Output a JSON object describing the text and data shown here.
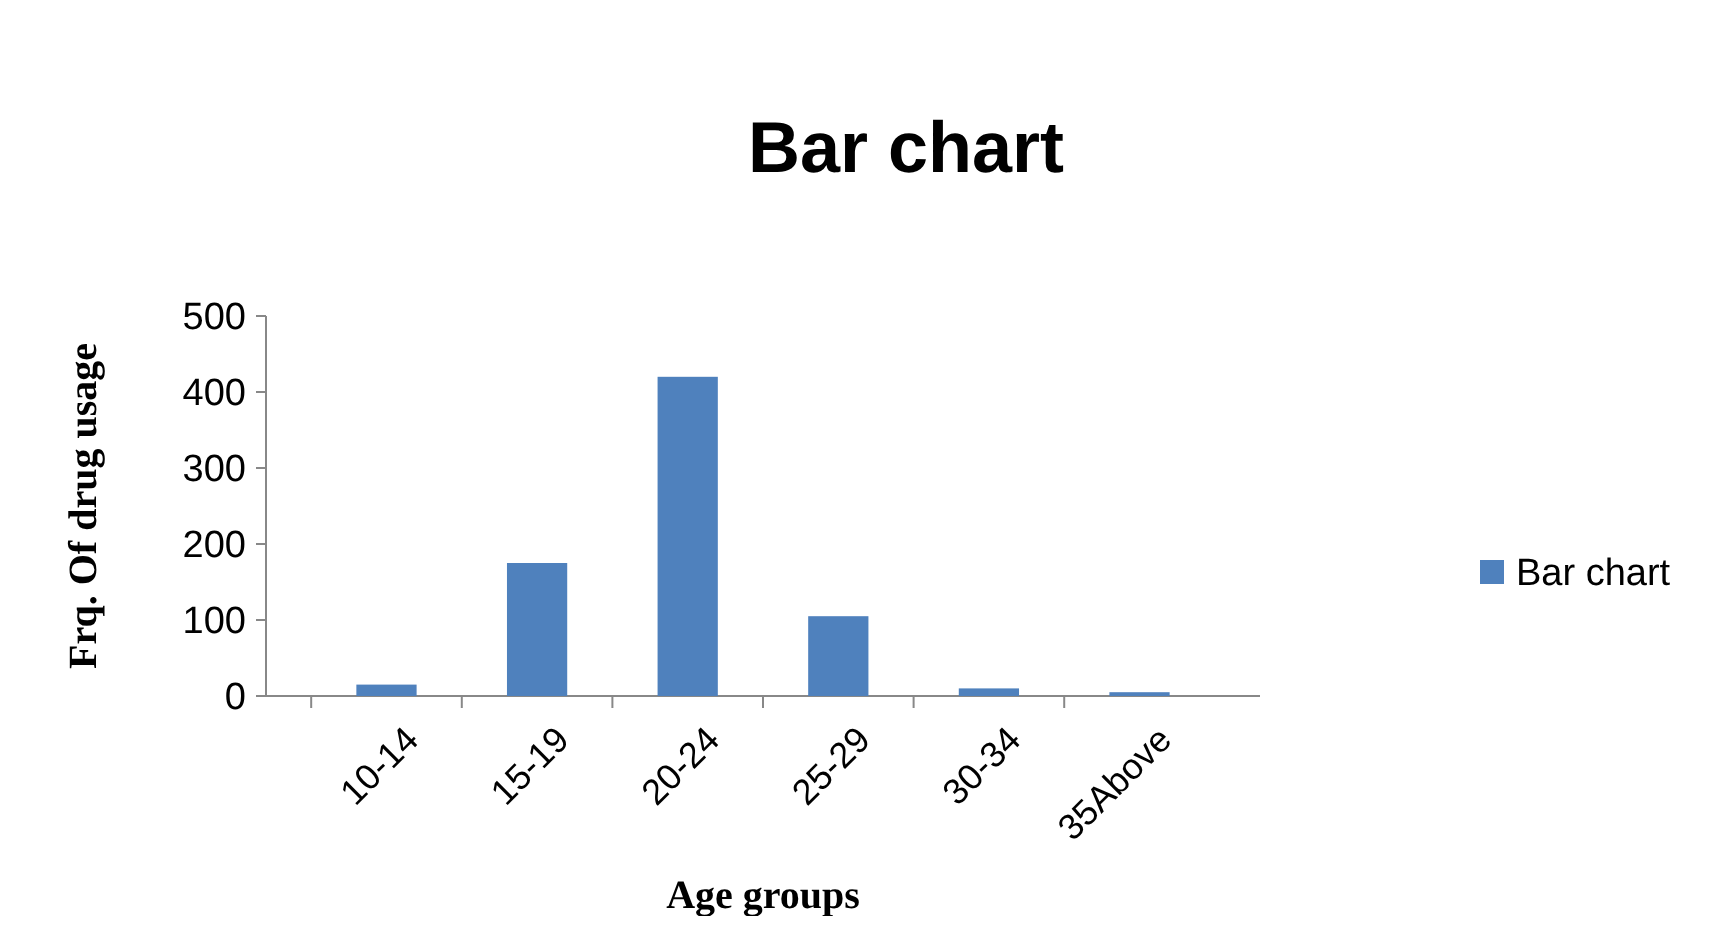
{
  "chart_data": {
    "type": "bar",
    "title": "Bar chart",
    "xlabel": "Age groups",
    "ylabel": "Frq. Of drug usage",
    "categories": [
      "10-14",
      "15-19",
      "20-24",
      "25-29",
      "30-34",
      "35Above"
    ],
    "series": [
      {
        "name": "Bar chart",
        "color": "#4f81bd",
        "values": [
          15,
          175,
          420,
          105,
          10,
          5
        ]
      }
    ],
    "ylim": [
      0,
      500
    ],
    "yticks": [
      0,
      100,
      200,
      300,
      400,
      500
    ],
    "grid": false,
    "legend": "right"
  }
}
